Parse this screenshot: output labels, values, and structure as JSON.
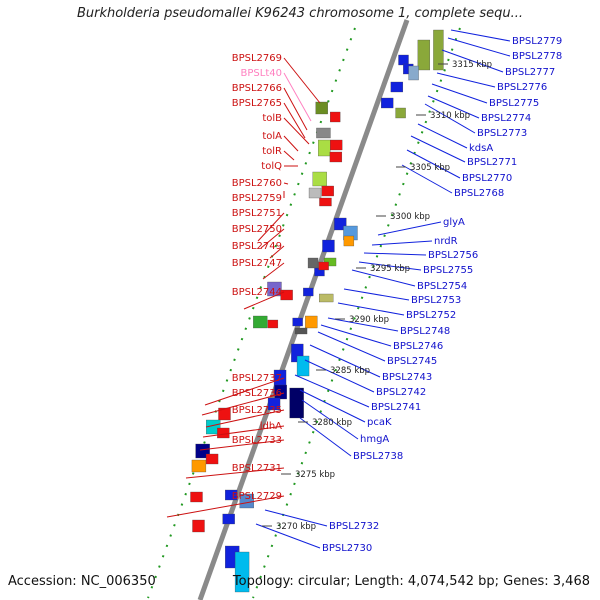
{
  "title": "Burkholderia pseudomallei K96243 chromosome 1, complete sequ...",
  "footer": {
    "accession": "Accession: NC_006350",
    "summary": "Topology: circular; Length: 4,074,542 bp; Genes: 3,468"
  },
  "colors": {
    "forward_strand": "#ee1111",
    "reverse_strand": "#1122dd",
    "pseudo_label": "#ff80c0",
    "backbone": "#999999",
    "dots": "#229922"
  },
  "kbp_ticks": [
    "3315 kbp",
    "3310 kbp",
    "3305 kbp",
    "3300 kbp",
    "3295 kbp",
    "3290 kbp",
    "3285 kbp",
    "3280 kbp",
    "3275 kbp",
    "3270 kbp"
  ],
  "left_labels": [
    "BPSL2769",
    "BPSLt40",
    "BPSL2766",
    "BPSL2765",
    "tolB",
    "tolA",
    "tolR",
    "tolQ",
    "BPSL2760",
    "BPSL2759",
    "BPSL2751",
    "BPSL2750",
    "BPSL2749",
    "BPSL2747",
    "BPSL2744",
    "BPSL2737",
    "BPSL2736",
    "BPSL2735",
    "ldhA",
    "BPSL2733",
    "BPSL2731",
    "BPSL2729"
  ],
  "right_labels": [
    "BPSL2779",
    "BPSL2778",
    "BPSL2777",
    "BPSL2776",
    "BPSL2775",
    "BPSL2774",
    "BPSL2773",
    "kdsA",
    "BPSL2771",
    "BPSL2770",
    "BPSL2768",
    "glyA",
    "nrdR",
    "BPSL2756",
    "BPSL2755",
    "BPSL2754",
    "BPSL2753",
    "BPSL2752",
    "BPSL2748",
    "BPSL2746",
    "BPSL2745",
    "BPSL2743",
    "BPSL2742",
    "BPSL2741",
    "pcaK",
    "hmgA",
    "BPSL2738",
    "BPSL2732",
    "BPSL2730"
  ]
}
